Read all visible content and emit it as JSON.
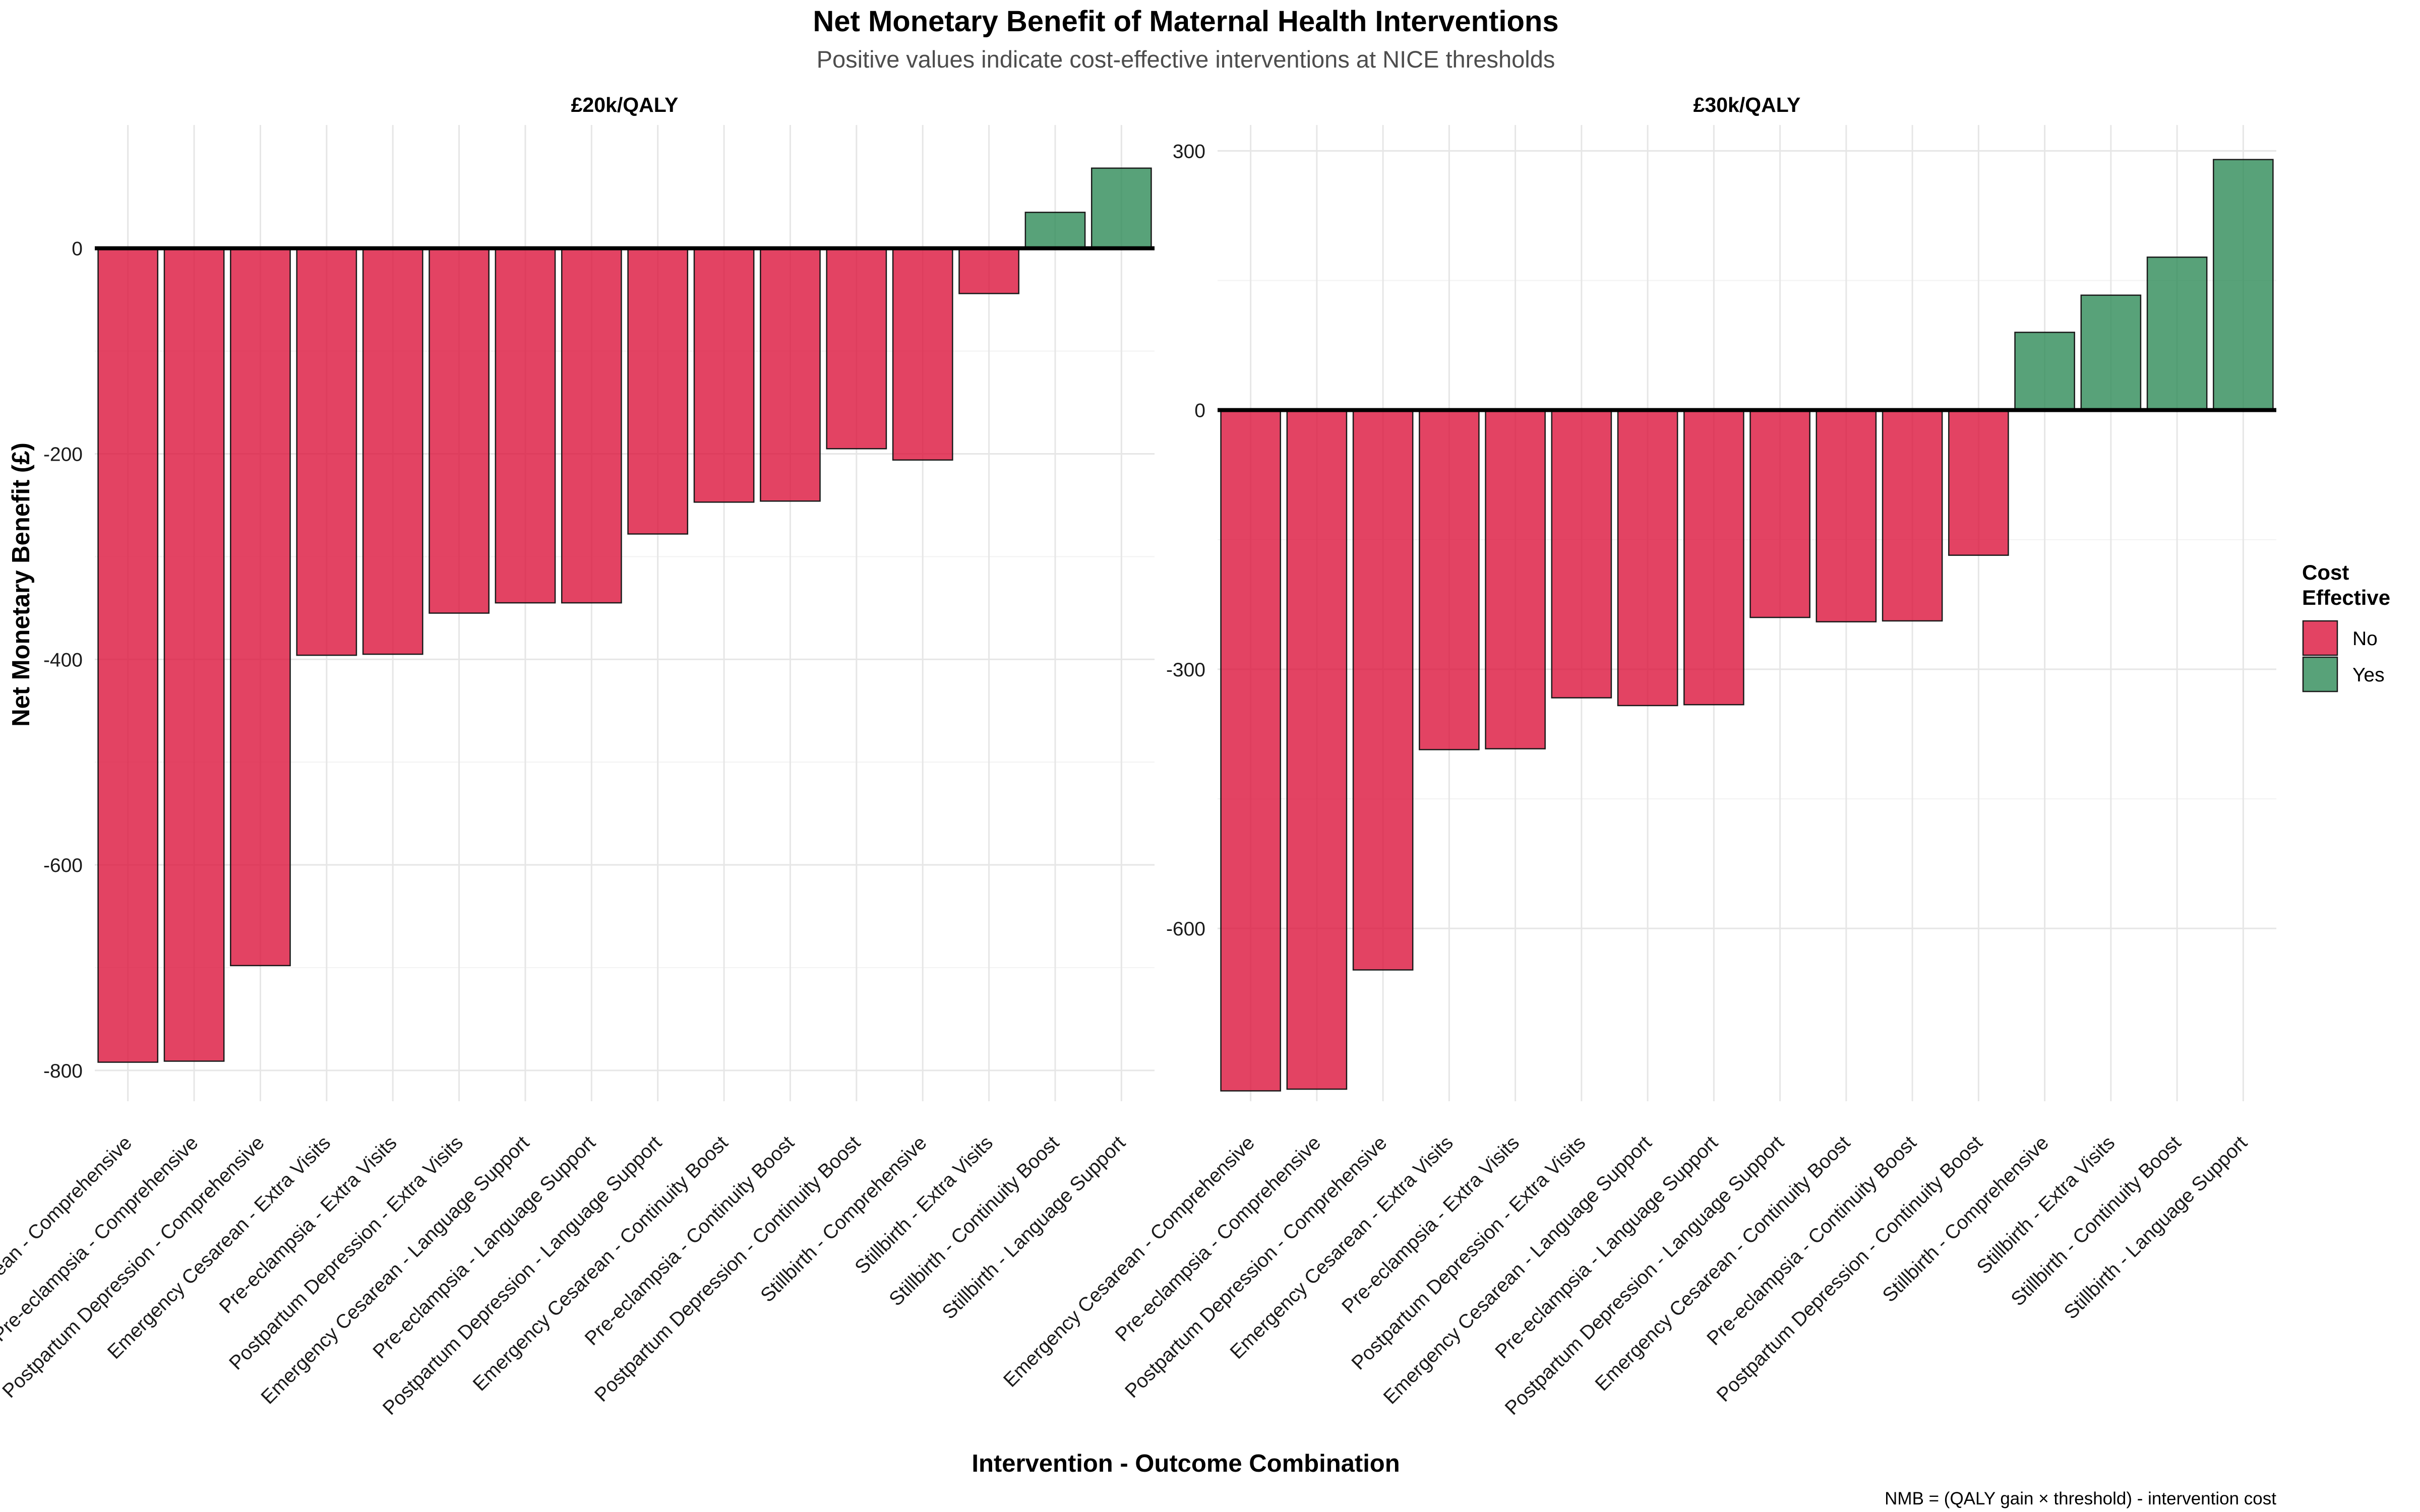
{
  "chart_data": {
    "type": "bar",
    "title": "Net Monetary Benefit of Maternal Health Interventions",
    "subtitle": "Positive values indicate cost-effective interventions at NICE thresholds",
    "xlabel": "Intervention - Outcome Combination",
    "ylabel": "Net Monetary Benefit (£)",
    "caption": "NMB = (QALY gain × threshold) - intervention cost",
    "legend": {
      "title_line1": "Cost",
      "title_line2": "Effective",
      "position": "right",
      "entries": [
        {
          "label": "No",
          "color": "#DC143C"
        },
        {
          "label": "Yes",
          "color": "#2E8B57"
        }
      ]
    },
    "grid": true,
    "panels": [
      {
        "strip": "£20k/QALY",
        "ylim": [
          -830,
          120
        ],
        "yticks": [
          0,
          -200,
          -400,
          -600,
          -800
        ],
        "ytick_labels": [
          "0",
          "-200",
          "-400",
          "-600",
          "-800"
        ],
        "categories": [
          "Emergency Cesarean - Comprehensive",
          "Pre-eclampsia - Comprehensive",
          "Postpartum Depression - Comprehensive",
          "Emergency Cesarean - Extra Visits",
          "Pre-eclampsia - Extra Visits",
          "Postpartum Depression - Extra Visits",
          "Emergency Cesarean - Language Support",
          "Pre-eclampsia - Language Support",
          "Postpartum Depression - Language Support",
          "Emergency Cesarean - Continuity Boost",
          "Pre-eclampsia - Continuity Boost",
          "Postpartum Depression - Continuity Boost",
          "Stillbirth - Comprehensive",
          "Stillbirth - Extra Visits",
          "Stillbirth - Continuity Boost",
          "Stillbirth - Language Support"
        ],
        "values": [
          -792,
          -791,
          -698,
          -396,
          -395,
          -355,
          -345,
          -345,
          -278,
          -247,
          -246,
          -195,
          -206,
          -44,
          35,
          78
        ],
        "cost_effective": [
          "No",
          "No",
          "No",
          "No",
          "No",
          "No",
          "No",
          "No",
          "No",
          "No",
          "No",
          "No",
          "No",
          "No",
          "Yes",
          "Yes"
        ]
      },
      {
        "strip": "£30k/QALY",
        "ylim": [
          -800,
          330
        ],
        "yticks": [
          300,
          0,
          -300,
          -600
        ],
        "ytick_labels": [
          "300",
          "0",
          "-300",
          "-600"
        ],
        "categories": [
          "Emergency Cesarean - Comprehensive",
          "Pre-eclampsia - Comprehensive",
          "Postpartum Depression - Comprehensive",
          "Emergency Cesarean - Extra Visits",
          "Pre-eclampsia - Extra Visits",
          "Postpartum Depression - Extra Visits",
          "Emergency Cesarean - Language Support",
          "Pre-eclampsia - Language Support",
          "Postpartum Depression - Language Support",
          "Emergency Cesarean - Continuity Boost",
          "Pre-eclampsia - Continuity Boost",
          "Postpartum Depression - Continuity Boost",
          "Stillbirth - Comprehensive",
          "Stillbirth - Extra Visits",
          "Stillbirth - Continuity Boost",
          "Stillbirth - Language Support"
        ],
        "values": [
          -788,
          -786,
          -648,
          -393,
          -392,
          -333,
          -342,
          -341,
          -240,
          -245,
          -244,
          -168,
          90,
          133,
          177,
          290
        ],
        "cost_effective": [
          "No",
          "No",
          "No",
          "No",
          "No",
          "No",
          "No",
          "No",
          "No",
          "No",
          "No",
          "No",
          "Yes",
          "Yes",
          "Yes",
          "Yes"
        ]
      }
    ]
  }
}
